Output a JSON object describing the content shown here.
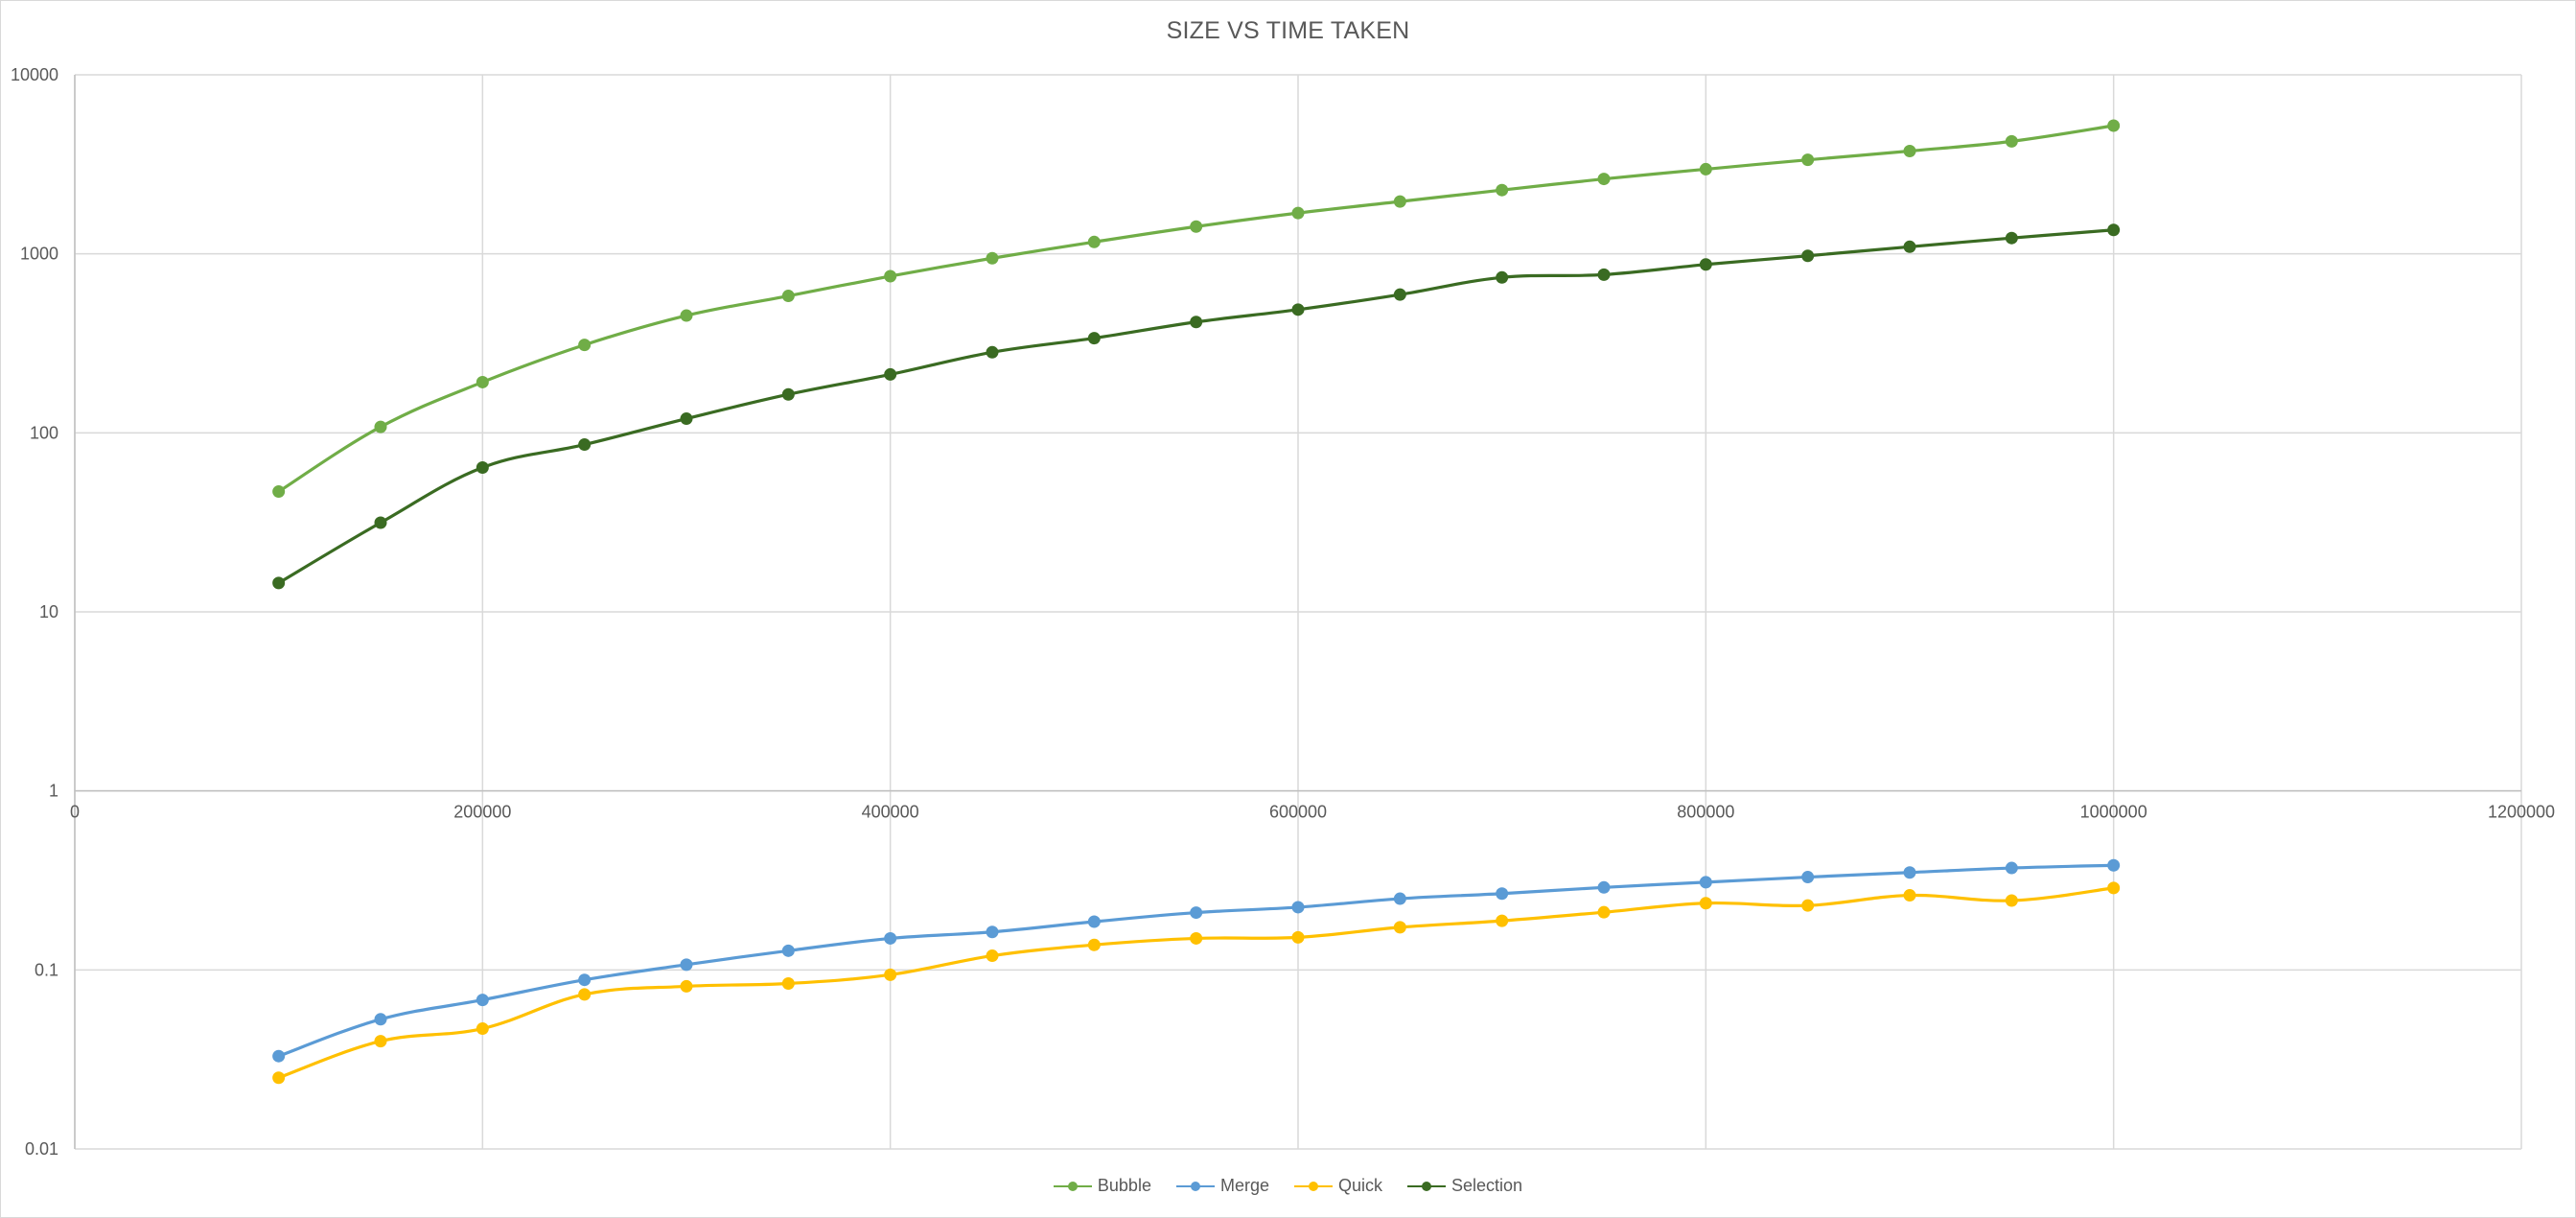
{
  "chart_data": {
    "type": "line",
    "title": "SIZE VS TIME TAKEN",
    "xlabel": "",
    "ylabel": "",
    "x_scale": "linear",
    "y_scale": "log",
    "xlim": [
      0,
      1200000
    ],
    "ylim": [
      0.01,
      10000
    ],
    "x_ticks": [
      "0",
      "200000",
      "400000",
      "600000",
      "800000",
      "1000000",
      "1200000"
    ],
    "y_ticks": [
      "0.01",
      "0.1",
      "1",
      "10",
      "100",
      "1000",
      "10000"
    ],
    "x_axis_crosses_at_y": 1,
    "grid": true,
    "legend_position": "bottom",
    "x": [
      100000,
      150000,
      200000,
      250000,
      300000,
      350000,
      400000,
      450000,
      500000,
      550000,
      600000,
      650000,
      700000,
      750000,
      800000,
      850000,
      900000,
      950000,
      1000000
    ],
    "series": [
      {
        "name": "Bubble",
        "color": "#70ad47",
        "values": [
          47,
          108,
          192,
          310,
          452,
          582,
          750,
          945,
          1165,
          1420,
          1690,
          1960,
          2270,
          2620,
          2970,
          3350,
          3750,
          4250,
          5200
        ]
      },
      {
        "name": "Merge",
        "color": "#5b9bd5",
        "values": [
          0.033,
          0.053,
          0.068,
          0.088,
          0.107,
          0.128,
          0.15,
          0.163,
          0.186,
          0.209,
          0.224,
          0.25,
          0.267,
          0.289,
          0.309,
          0.33,
          0.35,
          0.371,
          0.384
        ]
      },
      {
        "name": "Quick",
        "color": "#ffc000",
        "values": [
          0.025,
          0.04,
          0.047,
          0.073,
          0.081,
          0.084,
          0.094,
          0.12,
          0.138,
          0.15,
          0.152,
          0.173,
          0.188,
          0.21,
          0.236,
          0.229,
          0.261,
          0.244,
          0.287
        ]
      },
      {
        "name": "Selection",
        "color": "#3a6b22",
        "values": [
          14.5,
          31.5,
          64,
          86,
          120,
          164,
          212,
          282,
          338,
          416,
          488,
          592,
          738,
          765,
          872,
          975,
          1095,
          1225,
          1360
        ]
      }
    ]
  }
}
